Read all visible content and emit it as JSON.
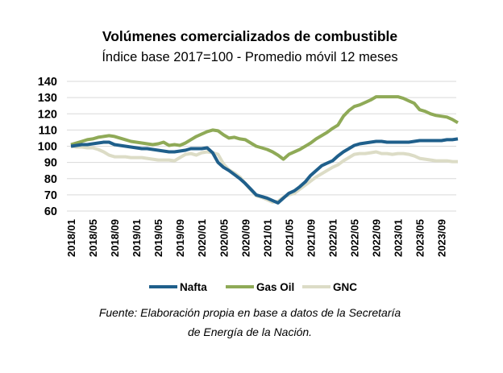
{
  "chart_data": {
    "type": "line",
    "title": "Volúmenes comercializados de combustible",
    "subtitle": "Índice base 2017=100 - Promedio móvil 12 meses",
    "xlabel": "",
    "ylabel": "",
    "ylim": [
      60,
      140
    ],
    "yticks": [
      60,
      70,
      80,
      90,
      100,
      110,
      120,
      130,
      140
    ],
    "grid": true,
    "legend_position": "bottom",
    "x_start": "2018/01",
    "x_tick_labels": [
      "2018/01",
      "2018/05",
      "2018/09",
      "2019/01",
      "2019/05",
      "2019/09",
      "2020/01",
      "2020/05",
      "2020/09",
      "2021/01",
      "2021/05",
      "2021/09",
      "2022/01",
      "2022/05",
      "2022/09",
      "2023/01",
      "2023/05",
      "2023/09"
    ],
    "series": [
      {
        "name": "Nafta",
        "color": "#1f5f8b",
        "values": [
          100,
          100.5,
          101,
          101,
          101.5,
          102,
          102.5,
          102.5,
          101,
          100.5,
          100,
          99.5,
          99,
          98.5,
          98.5,
          98,
          97.5,
          97,
          96.5,
          96.5,
          97,
          97.5,
          98.5,
          98.5,
          98.5,
          99,
          96,
          90,
          87,
          85,
          82.5,
          80,
          77,
          73.5,
          70,
          69,
          68,
          66.5,
          65,
          68,
          71,
          72.5,
          75,
          78,
          82,
          85,
          88,
          89.5,
          91,
          94,
          96.5,
          98.5,
          100.5,
          101.5,
          102,
          102.5,
          103,
          103,
          102.5,
          102.5,
          102.5,
          102.5,
          102.5,
          103,
          103.5,
          103.5,
          103.5,
          103.5,
          103.5,
          104,
          104,
          104.5
        ]
      },
      {
        "name": "Gas Oil",
        "color": "#8faa57",
        "values": [
          101,
          102,
          103,
          104,
          104.5,
          105.5,
          106,
          106.5,
          106,
          105,
          104,
          103,
          102.5,
          102,
          101.5,
          101,
          101.5,
          102.5,
          100.5,
          101,
          100.5,
          102,
          104,
          106,
          107.5,
          109,
          110,
          109.5,
          107,
          105,
          105.5,
          104.5,
          104,
          102,
          100,
          99,
          98,
          96.5,
          94.5,
          92,
          95,
          96.5,
          98,
          100,
          102,
          104.5,
          106.5,
          108.5,
          111,
          113,
          118.5,
          122,
          124.5,
          125.5,
          127,
          128.5,
          130.5,
          130.5,
          130.5,
          130.5,
          130.5,
          129.5,
          128,
          126.5,
          122.5,
          121.5,
          120,
          119,
          118.5,
          118,
          116.5,
          114.5
        ]
      },
      {
        "name": "GNC",
        "color": "#dcdcc6",
        "values": [
          100,
          99.5,
          99.5,
          99,
          99,
          98,
          96.5,
          94.5,
          93.5,
          93.5,
          93.5,
          93,
          93,
          93,
          92.5,
          92,
          91.5,
          91.5,
          91.5,
          91,
          93,
          95,
          95.5,
          94.5,
          96,
          96.5,
          96,
          95,
          89,
          85.5,
          83.5,
          81,
          77,
          73,
          69.5,
          68.5,
          67,
          65.5,
          66,
          68.5,
          70,
          71,
          73.5,
          76,
          78.5,
          81,
          83,
          85,
          87,
          88.5,
          91,
          93,
          95,
          95.5,
          95.5,
          96,
          96.5,
          95.5,
          95.5,
          95,
          95.5,
          95.5,
          95,
          94,
          92.5,
          92,
          91.5,
          91,
          91,
          91,
          90.5,
          90.5
        ]
      }
    ]
  },
  "footnote": {
    "line1": "Fuente: Elaboración propia en base a datos de la Secretaría",
    "line2": "de Energía de la Nación."
  }
}
